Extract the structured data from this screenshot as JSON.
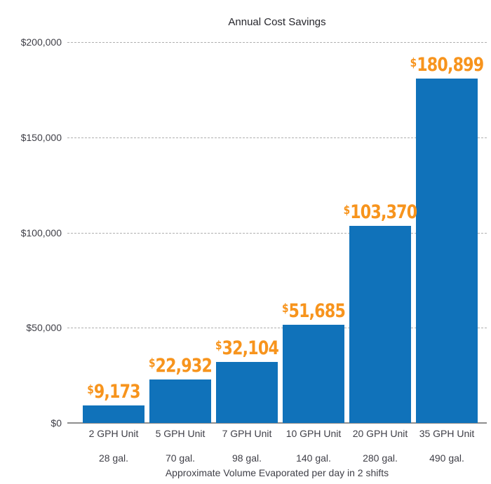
{
  "chart_data": {
    "type": "bar",
    "title": "Annual Cost Savings",
    "xlabel": "Approximate Volume Evaporated per day in 2 shifts",
    "ylabel": "",
    "ylim": [
      0,
      200000
    ],
    "grid": true,
    "legend": false,
    "categories": [
      "2 GPH Unit",
      "5 GPH Unit",
      "7 GPH Unit",
      "10 GPH Unit",
      "20 GPH Unit",
      "35 GPH Unit"
    ],
    "secondary_categories": [
      "28 gal.",
      "70 gal.",
      "98 gal.",
      "140 gal.",
      "280 gal.",
      "490 gal."
    ],
    "values": [
      9173,
      22932,
      32104,
      51685,
      103370,
      180899
    ],
    "value_labels": [
      "$9,173",
      "$22,932",
      "$32,104",
      "$51,685",
      "$103,370",
      "$180,899"
    ],
    "yticks": [
      {
        "label": "$200,000",
        "value": 200000
      },
      {
        "label": "$150,000",
        "value": 150000
      },
      {
        "label": "$100,000",
        "value": 100000
      },
      {
        "label": "$50,000",
        "value": 50000
      },
      {
        "label": "$0",
        "value": 0
      }
    ],
    "colors": {
      "bar": "#1072ba",
      "value_label": "#f7941d",
      "gridline": "#b0b0b0",
      "axis_line": "#8e8e8e",
      "text": "#3f3f47",
      "title": "#26262c"
    }
  }
}
